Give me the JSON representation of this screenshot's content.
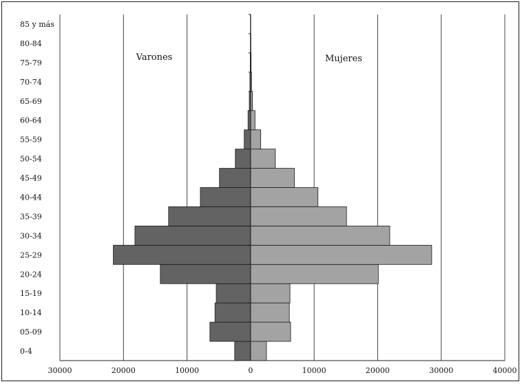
{
  "chart_data": {
    "type": "bar",
    "categories": [
      "0-4",
      "05-09",
      "10-14",
      "15-19",
      "20-24",
      "25-29",
      "30-34",
      "35-39",
      "40-44",
      "45-49",
      "50-54",
      "55-59",
      "60-64",
      "65-69",
      "70-74",
      "75-79",
      "80-84",
      "85 y más"
    ],
    "series": [
      {
        "name": "Varones",
        "values": [
          2500,
          6400,
          5600,
          5400,
          14200,
          21600,
          18200,
          12900,
          7900,
          4900,
          2400,
          1000,
          400,
          200,
          100,
          50,
          30,
          20
        ],
        "color": "#636363"
      },
      {
        "name": "Mujeres",
        "values": [
          2500,
          6300,
          6100,
          6200,
          20100,
          28500,
          21900,
          15100,
          10600,
          6900,
          3900,
          1600,
          700,
          300,
          150,
          80,
          50,
          30
        ],
        "color": "#a3a3a3"
      }
    ],
    "xlim": [
      -30000,
      40000
    ],
    "xticks": [
      -30000,
      -20000,
      -10000,
      0,
      10000,
      20000,
      30000,
      40000
    ],
    "xtick_labels": [
      "30000",
      "20000",
      "10000",
      "0",
      "10000",
      "20000",
      "30000",
      "40000"
    ],
    "grid": "vertical",
    "legend_placement": "inside, labels above each half"
  }
}
